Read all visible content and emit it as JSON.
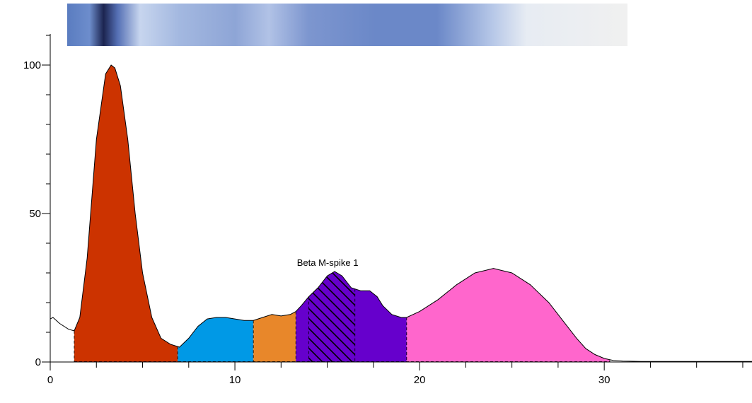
{
  "chart_data": {
    "type": "area",
    "title": "",
    "xlabel": "",
    "ylabel": "",
    "xlim": [
      0,
      38
    ],
    "ylim": [
      0,
      100
    ],
    "x_ticks": [
      0,
      10,
      20,
      30
    ],
    "y_ticks": [
      0,
      50,
      100
    ],
    "grid": false,
    "legend": "none",
    "gel_strip": true,
    "series": [
      {
        "x": [
          0,
          0.15,
          0.5,
          1.0,
          1.3,
          1.6,
          2.0,
          2.5,
          3.0,
          3.3,
          3.5,
          3.8,
          4.2,
          4.6,
          5.0,
          5.5,
          6.0,
          6.5,
          7.0,
          7.5,
          8.0,
          8.5,
          9.0,
          9.5,
          10.0,
          10.5,
          11.0,
          11.5,
          12.0,
          12.5,
          13.0,
          13.3,
          13.6,
          14.0,
          14.5,
          15.0,
          15.4,
          15.8,
          16.3,
          16.8,
          17.3,
          17.7,
          18.0,
          18.5,
          19.0,
          19.3,
          20.0,
          21.0,
          22.0,
          23.0,
          24.0,
          25.0,
          26.0,
          27.0,
          28.0,
          28.5,
          29.0,
          29.5,
          30.0,
          30.5,
          31.0,
          32.0,
          34.0,
          36.0,
          38.0
        ],
        "y": [
          14.5,
          15,
          13,
          11,
          10.5,
          15,
          35,
          75,
          97,
          100,
          99,
          93,
          75,
          50,
          30,
          15,
          8,
          6,
          5,
          8,
          12,
          14.5,
          15,
          15,
          14.5,
          14,
          14,
          15,
          16,
          15.5,
          16,
          17,
          19,
          22,
          25,
          29,
          30.5,
          29,
          25,
          24,
          24,
          22,
          19,
          16,
          15,
          15,
          17,
          21,
          26,
          30,
          31.5,
          30,
          26,
          20,
          12,
          8,
          4.5,
          2.5,
          1.2,
          0.5,
          0.3,
          0.2,
          0.2,
          0.2,
          0.2
        ]
      }
    ],
    "fractions": [
      {
        "start": 1.3,
        "end": 6.9,
        "color": "#cc3300"
      },
      {
        "start": 6.9,
        "end": 11.0,
        "color": "#0099e6"
      },
      {
        "start": 11.0,
        "end": 13.3,
        "color": "#e8872a"
      },
      {
        "start": 13.3,
        "end": 19.3,
        "color": "#6600cc"
      },
      {
        "start": 19.3,
        "end": 30.3,
        "color": "#ff66cc"
      }
    ],
    "m_spike": {
      "label": "Beta M-spike 1",
      "start": 14.0,
      "end": 16.5,
      "hatch": true
    }
  }
}
